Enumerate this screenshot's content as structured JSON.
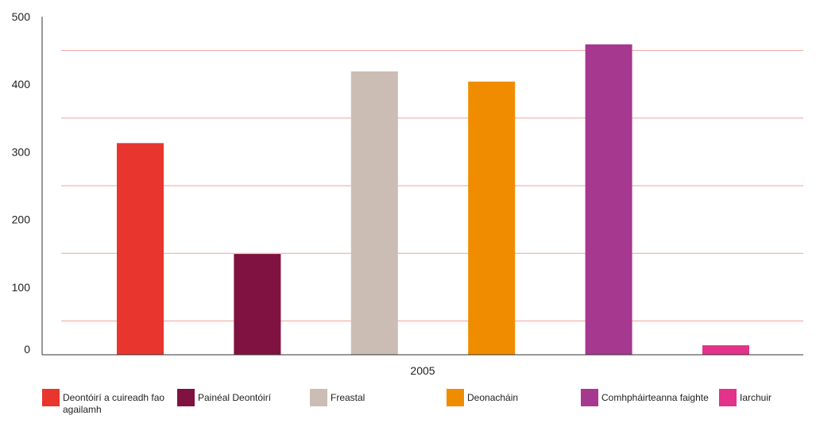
{
  "chart_data": {
    "type": "bar",
    "title": "",
    "xlabel": "",
    "ylabel": "",
    "x_category": "2005",
    "ylim": [
      0,
      500
    ],
    "y_ticks": [
      0,
      100,
      200,
      300,
      400,
      500
    ],
    "grid": true,
    "grid_color": "#f0a39a",
    "legend_position": "bottom",
    "categories": [
      "Deontóirí a cuireadh fao agailamh",
      "Painéal Deontóirí",
      "Freastal",
      "Deonacháin",
      "Comhpháirteanna faighte",
      "Iarchuir"
    ],
    "values": [
      313,
      149,
      419,
      404,
      459,
      14
    ],
    "colors": [
      "#e8352e",
      "#7f1240",
      "#cbbdb4",
      "#f08c00",
      "#a6388f",
      "#e2328a"
    ]
  }
}
